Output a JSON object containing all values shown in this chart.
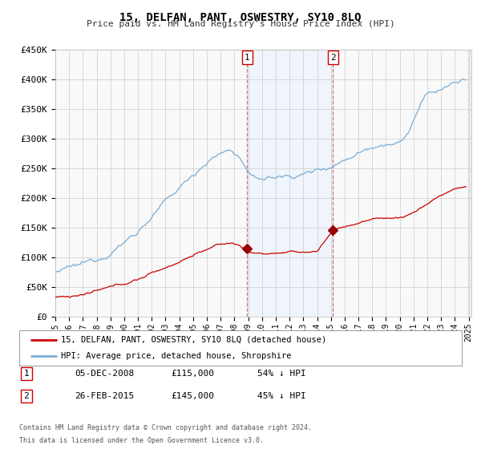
{
  "title": "15, DELFAN, PANT, OSWESTRY, SY10 8LQ",
  "subtitle": "Price paid vs. HM Land Registry's House Price Index (HPI)",
  "ylim": [
    0,
    450000
  ],
  "xlim_start": 1995.0,
  "xlim_end": 2025.2,
  "yticks": [
    0,
    50000,
    100000,
    150000,
    200000,
    250000,
    300000,
    350000,
    400000,
    450000
  ],
  "ytick_labels": [
    "£0",
    "£50K",
    "£100K",
    "£150K",
    "£200K",
    "£250K",
    "£300K",
    "£350K",
    "£400K",
    "£450K"
  ],
  "xticks": [
    1995,
    1996,
    1997,
    1998,
    1999,
    2000,
    2001,
    2002,
    2003,
    2004,
    2005,
    2006,
    2007,
    2008,
    2009,
    2010,
    2011,
    2012,
    2013,
    2014,
    2015,
    2016,
    2017,
    2018,
    2019,
    2020,
    2021,
    2022,
    2023,
    2024,
    2025
  ],
  "sale1_x": 2008.92,
  "sale1_y": 115000,
  "sale1_label": "1",
  "sale2_x": 2015.15,
  "sale2_y": 145000,
  "sale2_label": "2",
  "shading_x1": 2008.92,
  "shading_x2": 2015.15,
  "red_line_color": "#cc0000",
  "blue_line_color": "#7aadd4",
  "shading_color": "#ddeeff",
  "grid_color": "#cccccc",
  "dot_color": "#990000",
  "legend1_text": "15, DELFAN, PANT, OSWESTRY, SY10 8LQ (detached house)",
  "legend2_text": "HPI: Average price, detached house, Shropshire",
  "annotation1_date": "05-DEC-2008",
  "annotation1_price": "£115,000",
  "annotation1_hpi": "54% ↓ HPI",
  "annotation2_date": "26-FEB-2015",
  "annotation2_price": "£145,000",
  "annotation2_hpi": "45% ↓ HPI",
  "footer1": "Contains HM Land Registry data © Crown copyright and database right 2024.",
  "footer2": "This data is licensed under the Open Government Licence v3.0.",
  "bg_color": "#ffffff",
  "plot_bg_color": "#f9f9f9"
}
